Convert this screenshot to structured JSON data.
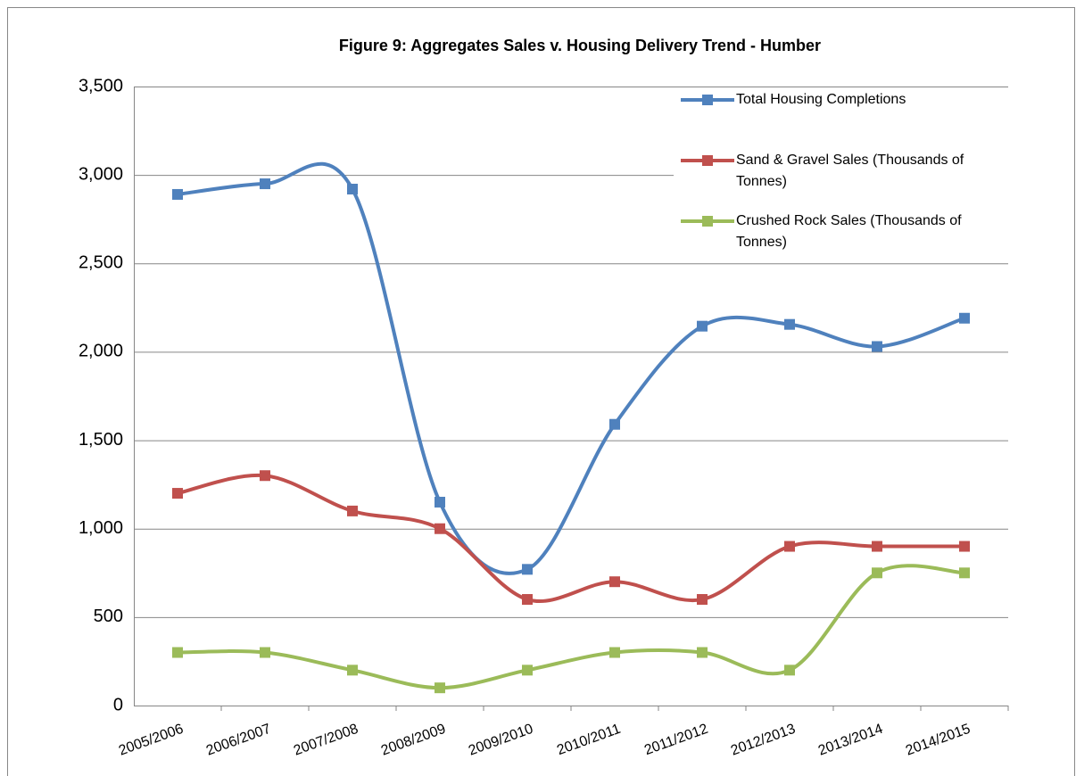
{
  "chart_data": {
    "type": "line",
    "title": "Figure 9: Aggregates  Sales v. Housing Delivery Trend - Humber",
    "categories": [
      "2005/2006",
      "2006/2007",
      "2007/2008",
      "2008/2009",
      "2009/2010",
      "2010/2011",
      "2011/2012",
      "2012/2013",
      "2013/2014",
      "2014/2015"
    ],
    "series": [
      {
        "name": "Total Housing Completions",
        "color": "#4f81bd",
        "values": [
          2890,
          2950,
          2920,
          1150,
          770,
          1590,
          2145,
          2155,
          2030,
          2190
        ]
      },
      {
        "name": "Sand & Gravel Sales (Thousands of Tonnes)",
        "color": "#c0504d",
        "values": [
          1200,
          1300,
          1100,
          1000,
          600,
          700,
          600,
          900,
          900,
          900
        ]
      },
      {
        "name": "Crushed Rock Sales (Thousands of Tonnes)",
        "color": "#9bbb59",
        "values": [
          300,
          300,
          200,
          100,
          200,
          300,
          300,
          200,
          750,
          750
        ]
      }
    ],
    "ylim": [
      0,
      3500
    ],
    "yticks": [
      0,
      500,
      {
        "value": 1000,
        "label": "1,000"
      },
      {
        "value": 1500,
        "label": "1,500"
      },
      {
        "value": 2000,
        "label": "2,000"
      },
      {
        "value": 2500,
        "label": "2,500"
      },
      {
        "value": 3000,
        "label": "3,000"
      },
      {
        "value": 3500,
        "label": "3,500"
      }
    ],
    "grid": true,
    "smooth": true,
    "legend": "top-right"
  }
}
